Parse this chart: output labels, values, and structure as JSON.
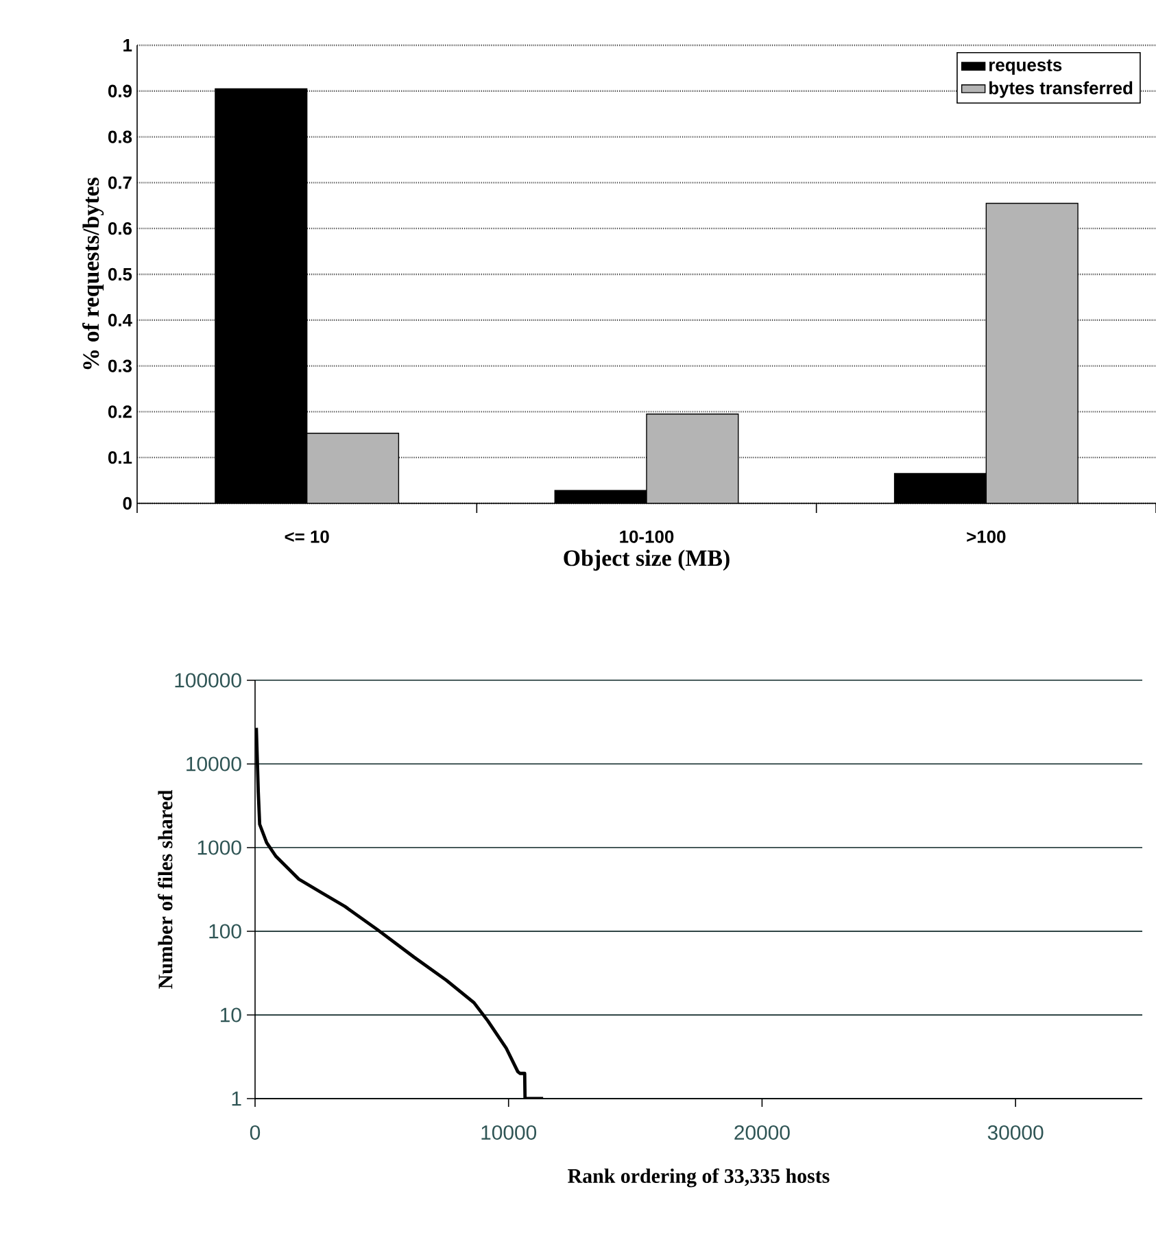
{
  "chart_data": [
    {
      "type": "bar",
      "xlabel": "Object size (MB)",
      "ylabel": "% of requests/bytes",
      "categories": [
        "<= 10",
        "10-100",
        ">100"
      ],
      "series": [
        {
          "name": "requests",
          "color": "#000000",
          "values": [
            0.905,
            0.028,
            0.065
          ]
        },
        {
          "name": "bytes transferred",
          "color": "#b4b4b4",
          "values": [
            0.153,
            0.195,
            0.655
          ]
        }
      ],
      "ylim": [
        0,
        1
      ],
      "yticks": [
        0,
        0.1,
        0.2,
        0.3,
        0.4,
        0.5,
        0.6,
        0.7,
        0.8,
        0.9,
        1
      ],
      "grid": "y",
      "legend": "top right"
    },
    {
      "type": "line",
      "xlabel": "Rank ordering of 33,335 hosts",
      "ylabel": "Number of files shared",
      "log": "y",
      "series": [
        {
          "color": "#000000",
          "x": [
            50,
            127,
            182,
            455,
            818,
            1727,
            2636,
            3545,
            4818,
            6273,
            7545,
            8636,
            9182,
            9909,
            10364,
            10450,
            10636,
            10650,
            10727,
            11364
          ],
          "values": [
            27000,
            4600,
            1900,
            1150,
            790,
            420,
            288,
            198,
            105,
            49,
            26,
            14,
            8.5,
            4,
            2.1,
            2,
            2,
            1,
            1,
            1
          ]
        }
      ],
      "xlim": [
        0,
        35000
      ],
      "xticks": [
        0,
        10000,
        20000,
        30000
      ],
      "ylim": [
        1,
        100000
      ],
      "yticks": [
        1,
        10,
        100,
        1000,
        10000,
        100000
      ],
      "grid": "y",
      "legend": false,
      "marker": "none",
      "line_style": "solid"
    }
  ]
}
